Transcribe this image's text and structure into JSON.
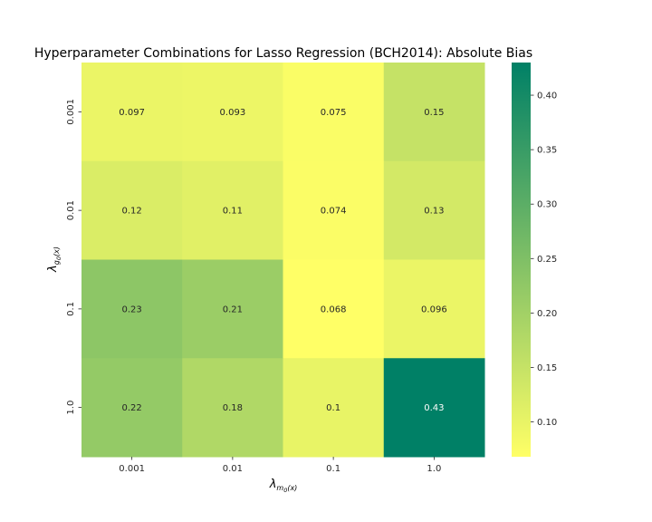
{
  "chart_data": {
    "type": "heatmap",
    "title": "Hyperparameter Combinations for Lasso Regression (BCH2014): Absolute Bias",
    "xlabel": {
      "main": "λ",
      "sub": "m",
      "subsub": "0",
      "tail": "(x)"
    },
    "ylabel": {
      "main": "λ",
      "sub": "g",
      "subsub": "0",
      "tail": "(x)"
    },
    "x_categories": [
      "0.001",
      "0.01",
      "0.1",
      "1.0"
    ],
    "y_categories": [
      "0.001",
      "0.01",
      "0.1",
      "1.0"
    ],
    "values": [
      [
        0.097,
        0.093,
        0.075,
        0.15
      ],
      [
        0.12,
        0.11,
        0.074,
        0.13
      ],
      [
        0.23,
        0.21,
        0.068,
        0.096
      ],
      [
        0.22,
        0.18,
        0.1,
        0.43
      ]
    ],
    "cell_labels": [
      [
        "0.097",
        "0.093",
        "0.075",
        "0.15"
      ],
      [
        "0.12",
        "0.11",
        "0.074",
        "0.13"
      ],
      [
        "0.23",
        "0.21",
        "0.068",
        "0.096"
      ],
      [
        "0.22",
        "0.18",
        "0.1",
        "0.43"
      ]
    ],
    "colorbar": {
      "colormap": "summer_r",
      "vmin": 0.068,
      "vmax": 0.43,
      "ticks": [
        0.1,
        0.15,
        0.2,
        0.25,
        0.3,
        0.35,
        0.4
      ],
      "tick_labels": [
        "0.10",
        "0.15",
        "0.20",
        "0.25",
        "0.30",
        "0.35",
        "0.40"
      ],
      "color_low": "#ffff66",
      "color_high": "#008066"
    }
  }
}
